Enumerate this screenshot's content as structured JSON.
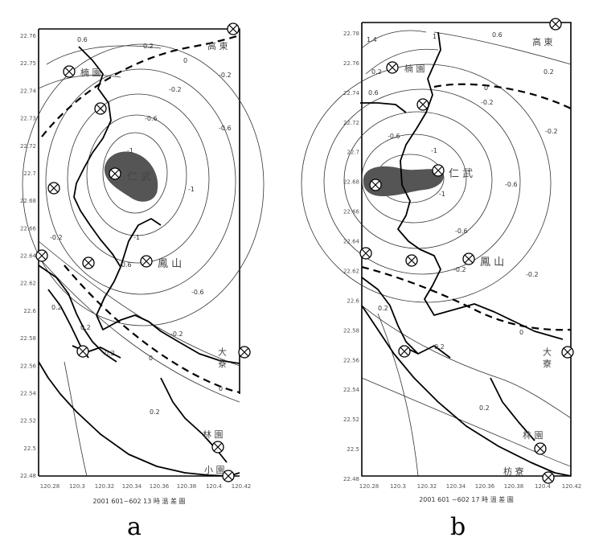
{
  "panel_a": {
    "letter": "a",
    "caption": "2001 601~602 13 時 溫 差 圖",
    "x_ticks": [
      "120.28",
      "120.3",
      "120.32",
      "120.34",
      "120.36",
      "120.38",
      "120.4",
      "120.42"
    ],
    "y_ticks": [
      "22.76",
      "22.75",
      "22.74",
      "22.73",
      "22.72",
      "22.7",
      "22.68",
      "22.66",
      "22.64",
      "22.62",
      "22.6",
      "22.58",
      "22.56",
      "22.54",
      "22.52",
      "22.5",
      "22.48"
    ],
    "places": [
      "楠 園",
      "仁 武",
      "鳳 山",
      "大 寮",
      "林 園",
      "高 東",
      "小 園"
    ],
    "contour_labels": [
      "0.6",
      "0.2",
      "0",
      "-0.2",
      "-0.2",
      "-0.6",
      "-0.6",
      "-1",
      "-1",
      "-1",
      "-0.6",
      "-0.2",
      "0.2",
      "0.2",
      "0",
      "0",
      "0.2",
      "0.2",
      "-0.2",
      "-0.6"
    ]
  },
  "panel_b": {
    "letter": "b",
    "caption": "2001 601 ~602 17 時 溫 差 圖",
    "x_ticks": [
      "120.28",
      "120.3",
      "120.32",
      "120.34",
      "120.36",
      "120.38",
      "120.4",
      "120.42"
    ],
    "y_ticks": [
      "22.78",
      "22.76",
      "22.74",
      "22.72",
      "22.7",
      "22.68",
      "22.66",
      "22.64",
      "22.62",
      "22.6",
      "22.58",
      "22.56",
      "22.54",
      "22.52",
      "22.5",
      "22.48"
    ],
    "places": [
      "楠 園",
      "仁 武",
      "鳳 山",
      "大 寮",
      "林 園",
      "高 東",
      "枋 寮"
    ],
    "contour_labels": [
      "1.4",
      "1",
      "0.6",
      "0.2",
      "0.6",
      "0.2",
      "0",
      "-0.2",
      "-0.2",
      "-0.6",
      "-1",
      "-1",
      "-0.6",
      "-0.6",
      "-0.2",
      "-0.2",
      "0",
      "0.2",
      "0.2",
      "0.2"
    ]
  }
}
